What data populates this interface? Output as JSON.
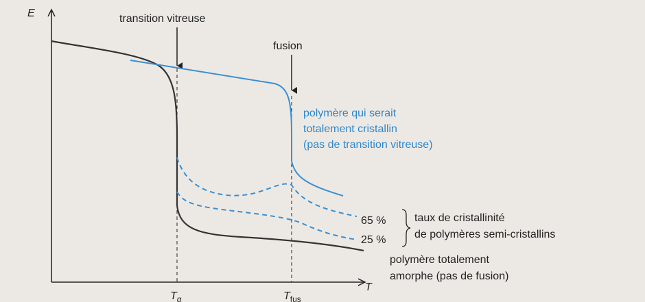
{
  "axes": {
    "y_label": "E",
    "x_label": "T",
    "ticks": [
      {
        "symbol": "T",
        "subscript": "g"
      },
      {
        "symbol": "T",
        "subscript": "fus"
      }
    ]
  },
  "annotations": {
    "glass_transition": "transition vitreuse",
    "melting": "fusion"
  },
  "curves": {
    "crystalline": [
      "polymère qui serait",
      "totalement cristallin",
      "(pas de transition vitreuse)"
    ],
    "semi_crystalline": {
      "levels": [
        "65 %",
        "25 %"
      ],
      "caption": [
        "taux de cristallinité",
        "de polymères semi-cristallins"
      ]
    },
    "amorphous": [
      "polymère totalement",
      "amorphe (pas de fusion)"
    ]
  }
}
